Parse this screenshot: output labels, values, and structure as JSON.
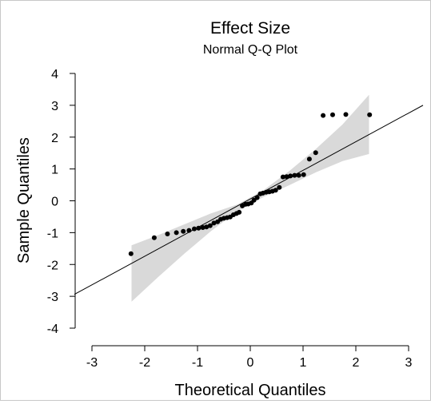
{
  "chart_data": {
    "type": "scatter",
    "title": "Effect Size",
    "subtitle": "Normal Q-Q Plot",
    "xlabel": "Theoretical Quantiles",
    "ylabel": "Sample Quantiles",
    "xlim": [
      -3,
      3
    ],
    "ylim": [
      -4,
      4
    ],
    "xticks": [
      "-3",
      "-2",
      "-1",
      "0",
      "1",
      "2",
      "3"
    ],
    "yticks": [
      "-4",
      "-3",
      "-2",
      "-1",
      "0",
      "1",
      "2",
      "3",
      "4"
    ],
    "grid": false,
    "legend": "none",
    "reference_line": {
      "slope": 0.98,
      "intercept": 0.04
    },
    "confidence_band": {
      "x": [
        -2.25,
        -1.75,
        -1.25,
        -0.75,
        -0.25,
        0.25,
        0.75,
        1.25,
        1.75,
        2.25
      ],
      "lower": [
        -3.17,
        -2.4,
        -1.66,
        -0.96,
        -0.33,
        0.12,
        0.5,
        0.9,
        1.25,
        1.47
      ],
      "upper": [
        -1.4,
        -1.08,
        -0.74,
        -0.4,
        -0.12,
        0.33,
        0.95,
        1.64,
        2.4,
        3.33
      ]
    },
    "x": [
      -2.26,
      -1.82,
      -1.57,
      -1.4,
      -1.27,
      -1.16,
      -1.06,
      -0.98,
      -0.9,
      -0.83,
      -0.76,
      -0.69,
      -0.62,
      -0.56,
      -0.5,
      -0.44,
      -0.38,
      -0.32,
      -0.26,
      -0.21,
      -0.15,
      -0.09,
      -0.04,
      0.02,
      0.07,
      0.13,
      0.19,
      0.24,
      0.3,
      0.36,
      0.42,
      0.48,
      0.55,
      0.62,
      0.69,
      0.76,
      0.84,
      0.92,
      1.01,
      1.12,
      1.24,
      1.38,
      1.56,
      1.81,
      2.26
    ],
    "y": [
      -1.66,
      -1.16,
      -1.04,
      -1.0,
      -0.96,
      -0.93,
      -0.88,
      -0.86,
      -0.84,
      -0.82,
      -0.78,
      -0.7,
      -0.66,
      -0.58,
      -0.55,
      -0.53,
      -0.51,
      -0.44,
      -0.4,
      -0.36,
      -0.16,
      -0.11,
      -0.1,
      -0.07,
      0.02,
      0.1,
      0.22,
      0.24,
      0.27,
      0.28,
      0.3,
      0.33,
      0.42,
      0.75,
      0.76,
      0.78,
      0.8,
      0.8,
      0.82,
      1.31,
      1.51,
      2.68,
      2.7,
      2.71,
      2.7
    ]
  }
}
